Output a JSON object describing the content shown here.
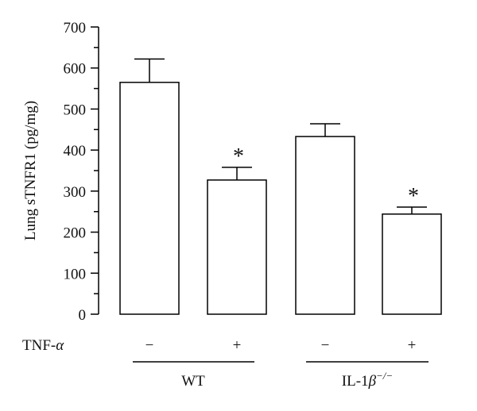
{
  "chart_data": {
    "type": "bar",
    "ylabel": "Lung sTNFR1 (pg/mg)",
    "ylim": [
      0,
      700
    ],
    "yticks": [
      0,
      100,
      200,
      300,
      400,
      500,
      600,
      700
    ],
    "categories": [
      "WT −",
      "WT +",
      "IL-1β−/− −",
      "IL-1β−/− +"
    ],
    "values": [
      565,
      327,
      433,
      244
    ],
    "errors": [
      57,
      31,
      31,
      17
    ],
    "significance": [
      "",
      "*",
      "",
      "*"
    ],
    "treatment": {
      "label_prefix": "TNF-",
      "label_symbol": "α",
      "signs": [
        "−",
        "+",
        "−",
        "+"
      ]
    },
    "groups": [
      {
        "label": "WT",
        "label_sup": ""
      },
      {
        "label": "IL-1",
        "label_symbol": "β",
        "label_sup": "−/−"
      }
    ],
    "bar_fill": "#ffffff",
    "bar_stroke": "#000000",
    "grid": false,
    "legend": "none"
  }
}
